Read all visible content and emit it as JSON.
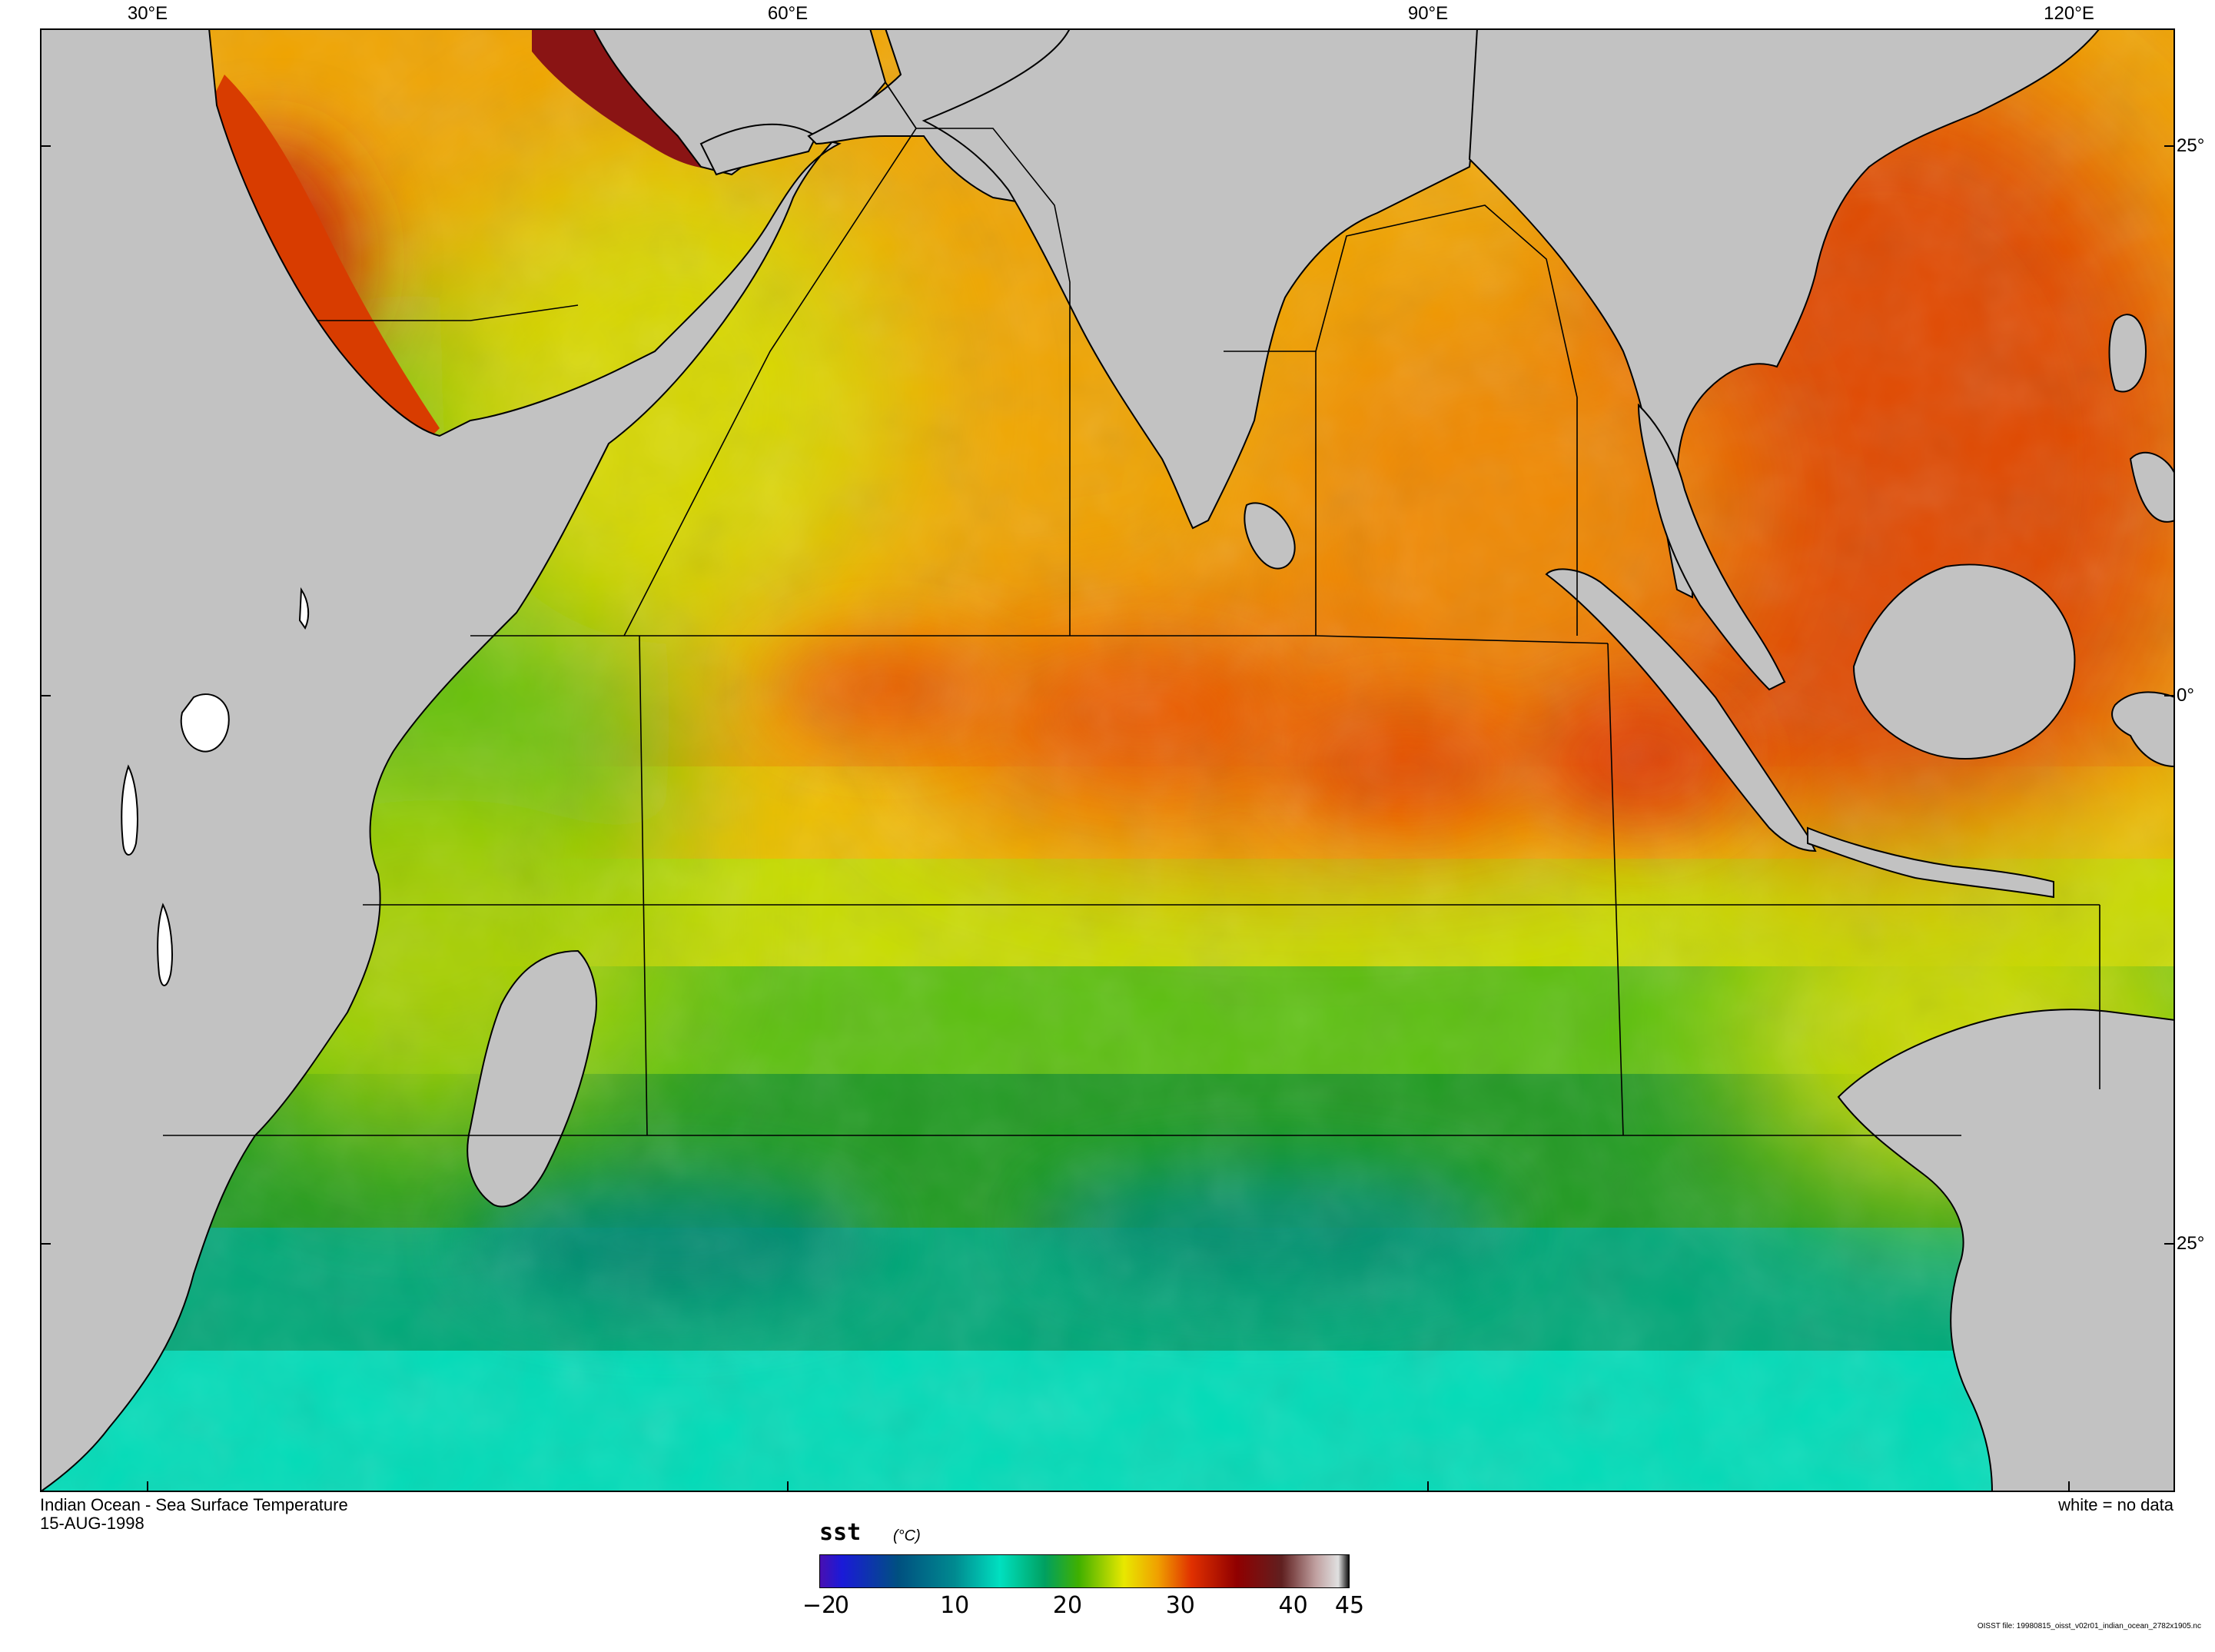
{
  "map": {
    "longitude_labels": [
      "30°E",
      "60°E",
      "90°E",
      "120°E"
    ],
    "latitude_labels": [
      "25°",
      "0°",
      "25°"
    ],
    "colors": {
      "land": "#c2c2c2",
      "coast": "#000000",
      "no_data": "#ffffff",
      "region_lines": "#000000"
    }
  },
  "captions": {
    "title": "Indian Ocean - Sea Surface Temperature",
    "date": "15-AUG-1998",
    "no_data_note": "white = no data",
    "file_note": "OISST file: 19980815_oisst_v02r01_indian_ocean_2782x1905.nc"
  },
  "colorbar": {
    "variable": "sst",
    "unit": "(°C)",
    "ticks": [
      "−2",
      "0",
      "10",
      "20",
      "30",
      "40",
      "45"
    ],
    "range": [
      -2,
      45
    ],
    "stops": [
      {
        "value": -2,
        "color": "#4a0fb0"
      },
      {
        "value": 0,
        "color": "#1a1ad8"
      },
      {
        "value": 5,
        "color": "#005080"
      },
      {
        "value": 10,
        "color": "#008a90"
      },
      {
        "value": 14,
        "color": "#00e0c0"
      },
      {
        "value": 18,
        "color": "#00a060"
      },
      {
        "value": 21,
        "color": "#40b000"
      },
      {
        "value": 25,
        "color": "#e8e800"
      },
      {
        "value": 28,
        "color": "#f0a000"
      },
      {
        "value": 31,
        "color": "#e03000"
      },
      {
        "value": 35,
        "color": "#900000"
      },
      {
        "value": 39,
        "color": "#602020"
      },
      {
        "value": 42,
        "color": "#c0a0a0"
      },
      {
        "value": 44,
        "color": "#e0e0e0"
      },
      {
        "value": 45,
        "color": "#000000"
      }
    ]
  }
}
